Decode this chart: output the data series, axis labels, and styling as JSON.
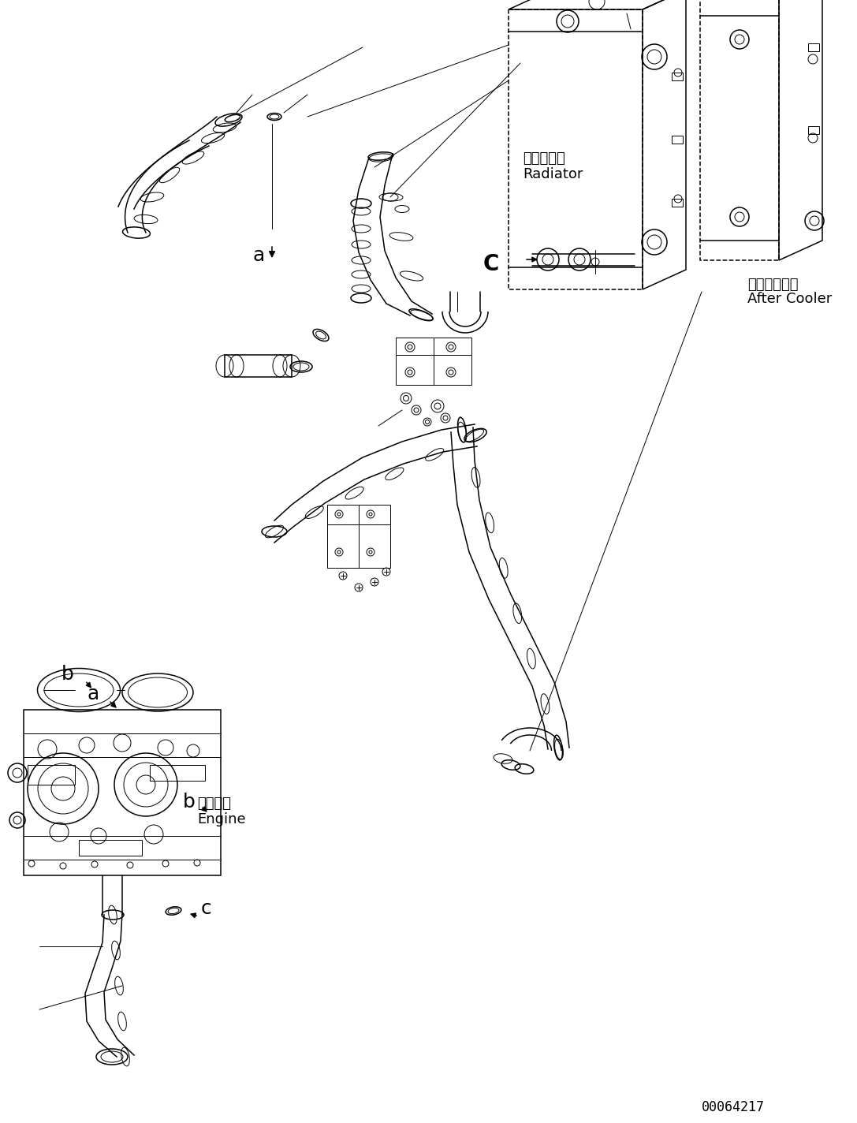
{
  "background_color": "#ffffff",
  "figure_width": 10.87,
  "figure_height": 14.24,
  "dpi": 100,
  "labels": {
    "radiator_jp": "ラジエータ",
    "radiator_en": "Radiator",
    "after_cooler_jp": "アフタクーラ",
    "after_cooler_en": "After Cooler",
    "engine_jp": "エンジン",
    "engine_en": "Engine",
    "label_a": "a",
    "label_b": "b",
    "label_C": "C",
    "label_c": "c",
    "part_number": "00064217"
  }
}
